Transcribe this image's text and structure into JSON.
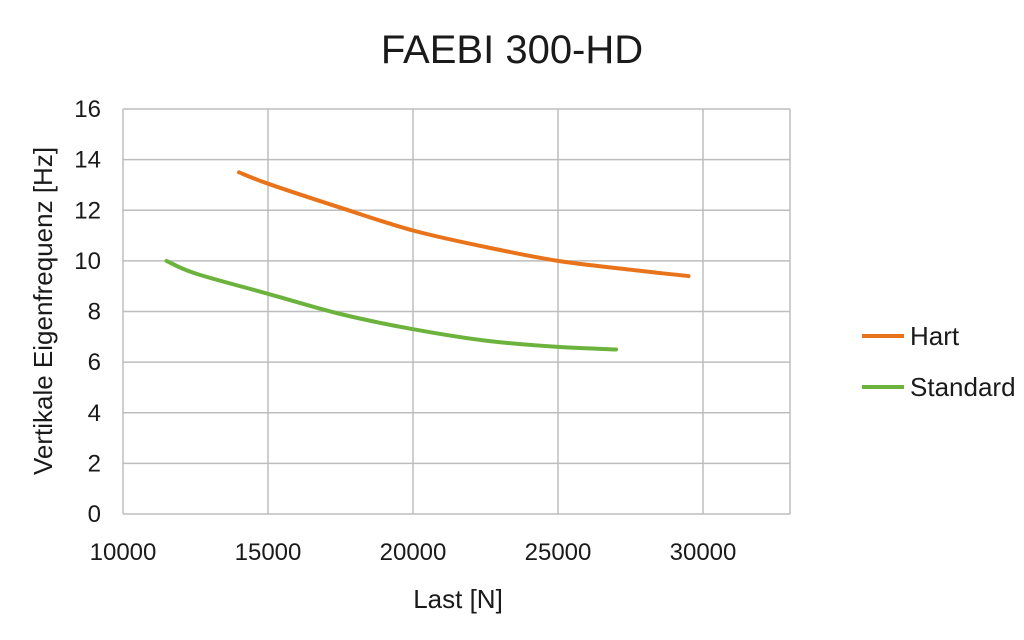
{
  "chart_data": {
    "type": "line",
    "title": "FAEBI 300-HD",
    "xlabel": "Last [N]",
    "ylabel": "Vertikale Eigenfrequenz [Hz]",
    "xlim": [
      10000,
      33000
    ],
    "ylim": [
      0,
      16
    ],
    "xticks": [
      10000,
      15000,
      20000,
      25000,
      30000
    ],
    "yticks": [
      0,
      2,
      4,
      6,
      8,
      10,
      12,
      14,
      16
    ],
    "grid": true,
    "legend_position": "right",
    "series": [
      {
        "name": "Hart",
        "color": "#e8731a",
        "x": [
          14000,
          15000,
          17500,
          20000,
          22500,
          25000,
          27500,
          29500
        ],
        "y": [
          13.5,
          13.05,
          12.1,
          11.2,
          10.55,
          10.0,
          9.65,
          9.4
        ]
      },
      {
        "name": "Standard",
        "color": "#6cb33e",
        "x": [
          11500,
          12500,
          15000,
          17500,
          20000,
          22500,
          25000,
          27000
        ],
        "y": [
          10.0,
          9.5,
          8.7,
          7.9,
          7.3,
          6.85,
          6.6,
          6.5
        ]
      }
    ]
  }
}
